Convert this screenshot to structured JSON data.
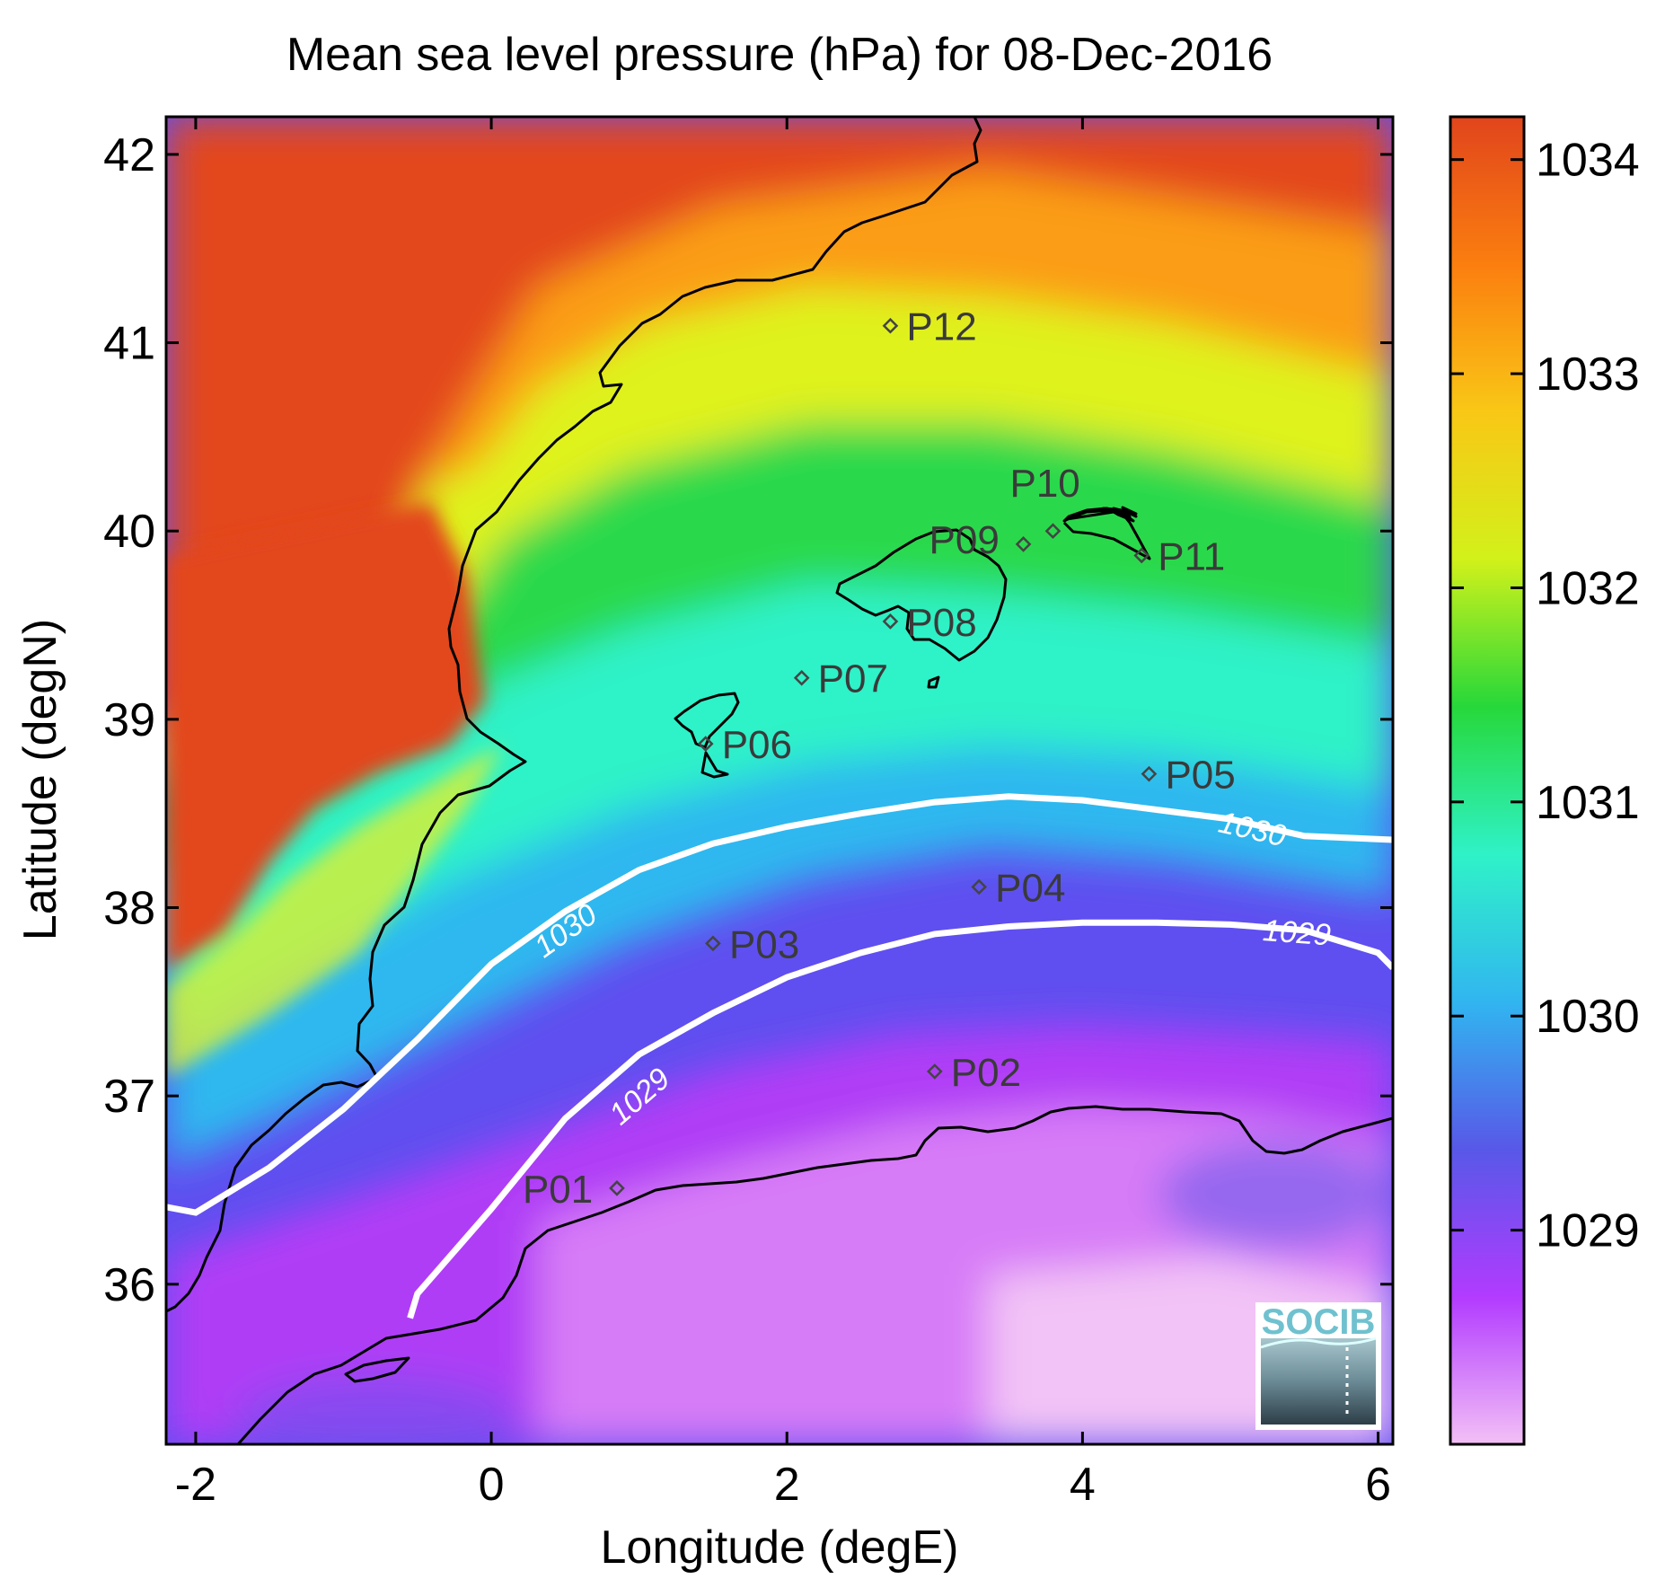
{
  "title": "Mean sea level pressure (hPa) for 08-Dec-2016",
  "xlabel": "Longitude (degE)",
  "ylabel": "Latitude (degN)",
  "x_ticks": [
    "-2",
    "0",
    "2",
    "4",
    "6"
  ],
  "y_ticks": [
    "36",
    "37",
    "38",
    "39",
    "40",
    "41",
    "42"
  ],
  "colorbar": {
    "ticks": [
      "1029",
      "1030",
      "1031",
      "1032",
      "1033",
      "1034"
    ],
    "colors": [
      "#f3c0f6",
      "#b23bff",
      "#5858e8",
      "#31b5f0",
      "#2ff2c8",
      "#27d83a",
      "#d2f11a",
      "#f9c716",
      "#fb7e0f",
      "#e1451c"
    ]
  },
  "logo": {
    "text": "SOCIB"
  },
  "chart_data": {
    "type": "heatmap",
    "title": "Mean sea level pressure (hPa) for 08-Dec-2016",
    "xlabel": "Longitude (degE)",
    "ylabel": "Latitude (degN)",
    "xlim": [
      -2.2,
      6.1
    ],
    "ylim": [
      35.15,
      42.2
    ],
    "colorbar_range": [
      1028.0,
      1034.2
    ],
    "colorbar_ticks": [
      1029,
      1030,
      1031,
      1032,
      1033,
      1034
    ],
    "contours": [
      {
        "level": "1030",
        "labels": [
          [
            0.5,
            37.88
          ],
          [
            5.15,
            38.42
          ]
        ],
        "points": [
          [
            -2.2,
            36.41
          ],
          [
            -2.0,
            36.38
          ],
          [
            -1.5,
            36.62
          ],
          [
            -1.0,
            36.93
          ],
          [
            -0.5,
            37.3
          ],
          [
            0.0,
            37.7
          ],
          [
            0.5,
            37.98
          ],
          [
            1.0,
            38.2
          ],
          [
            1.5,
            38.34
          ],
          [
            2.0,
            38.43
          ],
          [
            2.5,
            38.5
          ],
          [
            3.0,
            38.56
          ],
          [
            3.5,
            38.59
          ],
          [
            4.0,
            38.57
          ],
          [
            4.5,
            38.52
          ],
          [
            5.0,
            38.47
          ],
          [
            5.5,
            38.38
          ],
          [
            6.1,
            38.36
          ]
        ]
      },
      {
        "level": "1029",
        "labels": [
          [
            1.0,
            37.0
          ],
          [
            5.45,
            37.87
          ]
        ],
        "points": [
          [
            -0.55,
            35.82
          ],
          [
            -0.5,
            35.95
          ],
          [
            0.0,
            36.4
          ],
          [
            0.5,
            36.88
          ],
          [
            1.0,
            37.22
          ],
          [
            1.5,
            37.44
          ],
          [
            2.0,
            37.63
          ],
          [
            2.5,
            37.76
          ],
          [
            3.0,
            37.86
          ],
          [
            3.5,
            37.9
          ],
          [
            4.0,
            37.92
          ],
          [
            4.5,
            37.92
          ],
          [
            5.0,
            37.91
          ],
          [
            5.5,
            37.88
          ],
          [
            6.0,
            37.76
          ],
          [
            6.1,
            37.68
          ]
        ]
      }
    ],
    "stations": [
      {
        "name": "P01",
        "lon": 0.85,
        "lat": 36.51
      },
      {
        "name": "P02",
        "lon": 3.0,
        "lat": 37.13
      },
      {
        "name": "P03",
        "lon": 1.5,
        "lat": 37.81
      },
      {
        "name": "P04",
        "lon": 3.3,
        "lat": 38.11
      },
      {
        "name": "P05",
        "lon": 4.45,
        "lat": 38.71
      },
      {
        "name": "P06",
        "lon": 1.45,
        "lat": 38.87
      },
      {
        "name": "P07",
        "lon": 2.1,
        "lat": 39.22
      },
      {
        "name": "P08",
        "lon": 2.7,
        "lat": 39.52
      },
      {
        "name": "P09",
        "lon": 3.6,
        "lat": 39.93
      },
      {
        "name": "P10",
        "lon": 3.8,
        "lat": 40.0
      },
      {
        "name": "P11",
        "lon": 4.4,
        "lat": 39.87
      },
      {
        "name": "P12",
        "lon": 2.7,
        "lat": 41.09
      }
    ]
  }
}
